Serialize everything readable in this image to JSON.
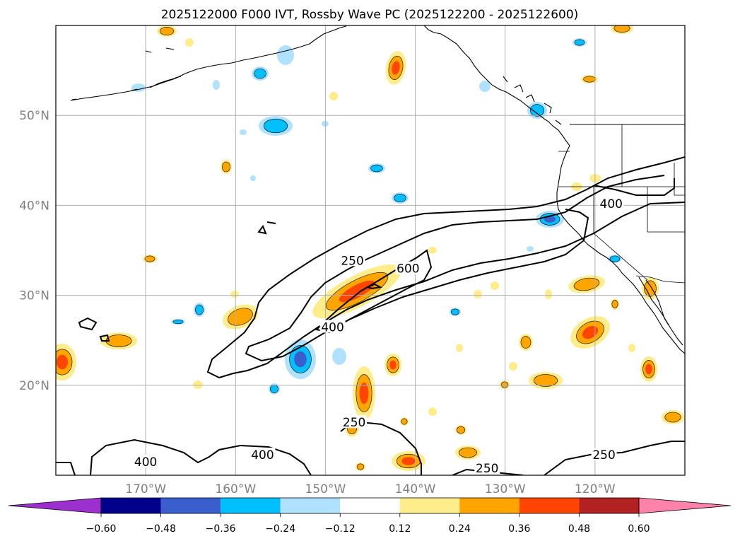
{
  "map": {
    "title": "2025122000 F000 IVT, Rossby Wave PC (2025122200 - 2025122600)",
    "lat_labels": [
      "50°N",
      "40°N",
      "30°N",
      "20°N"
    ],
    "lon_labels": [
      "170°W",
      "160°W",
      "150°W",
      "140°W",
      "130°W",
      "120°W"
    ],
    "extent": {
      "lon_west": -180,
      "lon_east": -110,
      "lat_south": 10,
      "lat_north": 60
    },
    "contour_labels": [
      {
        "text": "250",
        "lon": -147,
        "lat": 33.8
      },
      {
        "text": "600",
        "lon": -140.8,
        "lat": 32.9
      },
      {
        "text": "400",
        "lon": -149.2,
        "lat": 26.4
      },
      {
        "text": "400",
        "lon": -118.2,
        "lat": 40.1
      },
      {
        "text": "250",
        "lon": -146.8,
        "lat": 15.8
      },
      {
        "text": "400",
        "lon": -157.0,
        "lat": 12.2
      },
      {
        "text": "400",
        "lon": -170.0,
        "lat": 11.4
      },
      {
        "text": "250",
        "lon": -132.0,
        "lat": 10.7
      },
      {
        "text": "250",
        "lon": -119.0,
        "lat": 12.2
      }
    ]
  },
  "colorbar": {
    "ticks": [
      "−0.60",
      "−0.48",
      "−0.36",
      "−0.24",
      "−0.12",
      "0.12",
      "0.24",
      "0.36",
      "0.48",
      "0.60"
    ],
    "colors": [
      "#9b30cf",
      "#00008b",
      "#3a5fcd",
      "#00bfff",
      "#b0e2ff",
      "#ffffff",
      "#ffec8b",
      "#ffa500",
      "#ff4500",
      "#b22222",
      "#ff82ab"
    ]
  },
  "palette": {
    "pos1": "#ffec8b",
    "pos2": "#ffa500",
    "pos3": "#ff4500",
    "neg1": "#b0e2ff",
    "neg2": "#00bfff",
    "neg3": "#3a5fcd",
    "grid": "#b0b0b0",
    "coast": "#000000"
  }
}
